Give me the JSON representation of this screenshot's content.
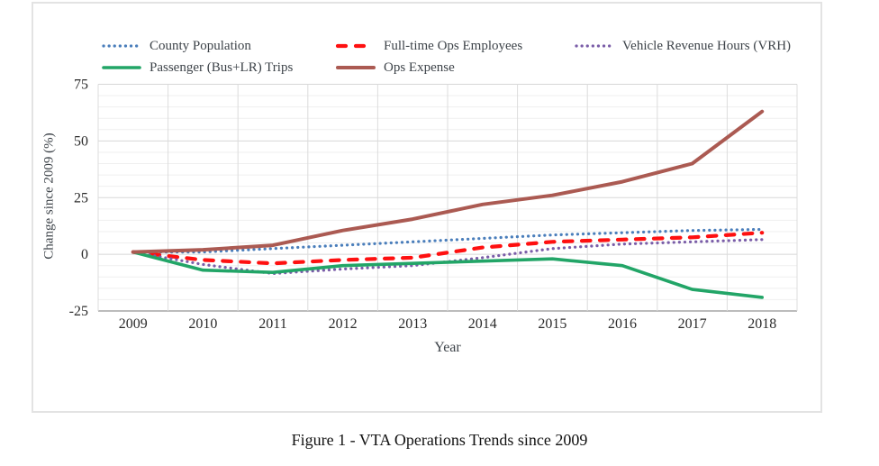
{
  "page": {
    "caption": "Figure 1 - VTA Operations Trends since 2009"
  },
  "chart_data": {
    "type": "line",
    "title": "",
    "xlabel": "Year",
    "ylabel": "Change since 2009 (%)",
    "x": [
      2009,
      2010,
      2011,
      2012,
      2013,
      2014,
      2015,
      2016,
      2017,
      2018
    ],
    "ylim": [
      -25,
      75
    ],
    "yticks": [
      75,
      50,
      25,
      0,
      -25
    ],
    "minor_gridline_step": 5,
    "grid": true,
    "legend_position": "top",
    "legend_rows": [
      [
        0,
        1,
        2
      ],
      [
        3,
        4
      ]
    ],
    "series": [
      {
        "name": "County Population",
        "color": "#4a7ebb",
        "style": "dotted",
        "values": [
          1,
          1,
          2.5,
          4,
          5.5,
          7,
          8.5,
          9.5,
          10.5,
          11
        ]
      },
      {
        "name": "Full-time Ops Employees",
        "color": "#fe1010",
        "style": "dashed",
        "values": [
          1,
          -2.5,
          -4,
          -2.5,
          -1.5,
          3,
          5.5,
          6.5,
          7.5,
          9.5
        ]
      },
      {
        "name": "Vehicle Revenue Hours (VRH)",
        "color": "#7a5da8",
        "style": "dotted",
        "values": [
          1,
          -4.5,
          -8.5,
          -6.5,
          -5,
          -1.5,
          2.5,
          4.5,
          5.5,
          6.5
        ]
      },
      {
        "name": "Passenger (Bus+LR) Trips",
        "color": "#22a567",
        "style": "solid",
        "values": [
          1,
          -7,
          -8,
          -5,
          -4,
          -3,
          -2,
          -5,
          -15.5,
          -19
        ]
      },
      {
        "name": "Ops Expense",
        "color": "#ab5a52",
        "style": "solid",
        "values": [
          1,
          2,
          4,
          10.5,
          15.5,
          22,
          26,
          32,
          40,
          63
        ]
      }
    ]
  }
}
